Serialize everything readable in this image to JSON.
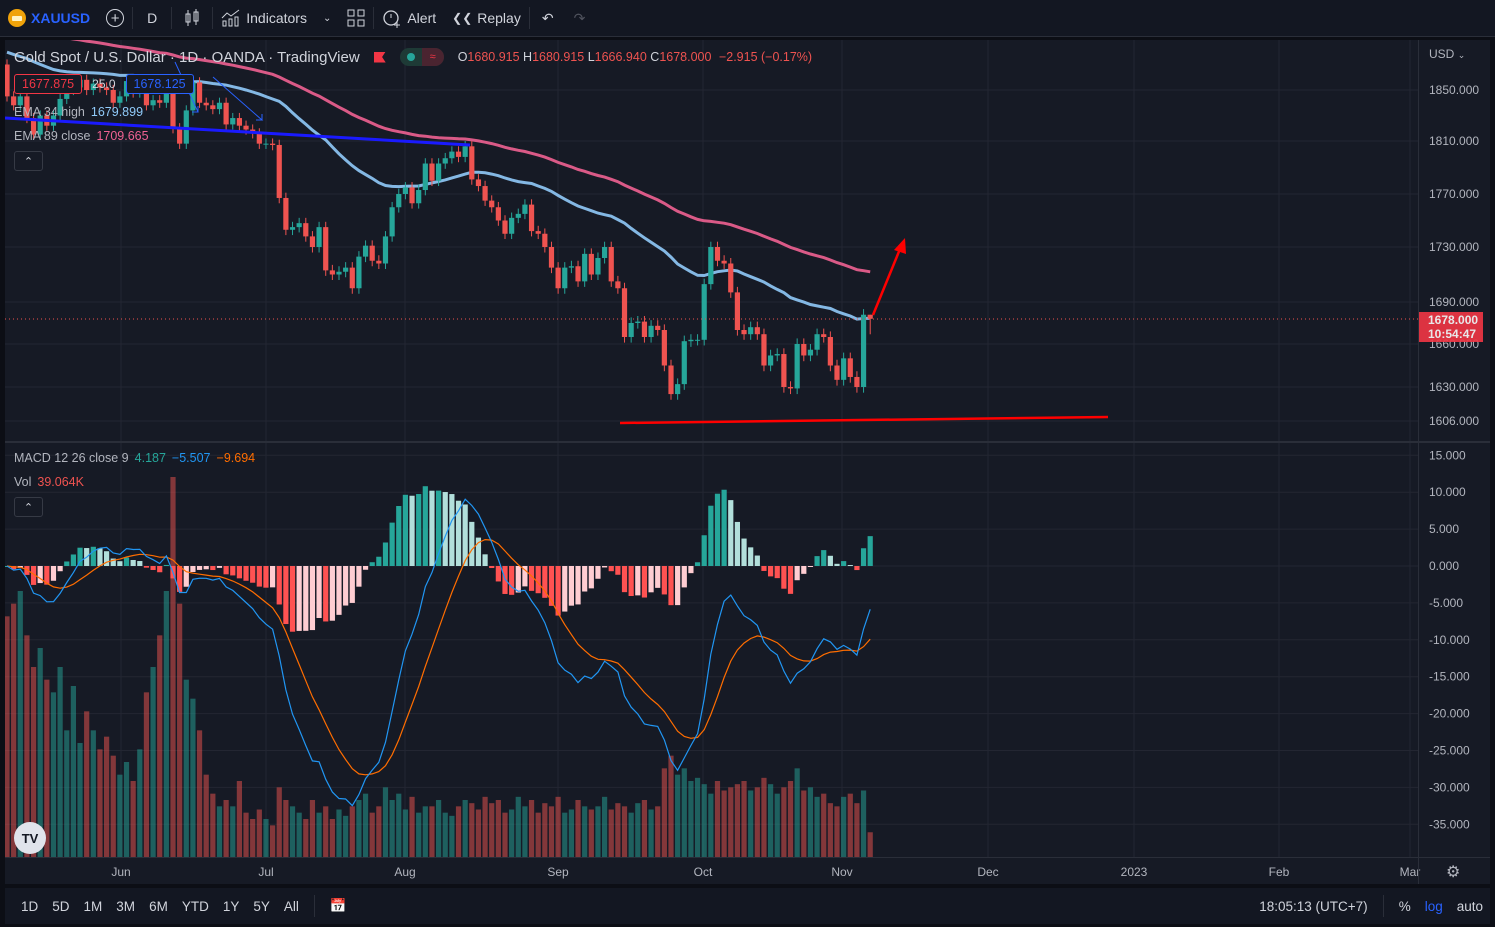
{
  "toolbar": {
    "symbol": "XAUUSD",
    "interval": "D",
    "indicators_label": "Indicators",
    "alert_label": "Alert",
    "replay_label": "Replay"
  },
  "legend": {
    "title": "Gold Spot / U.S. Dollar · 1D · OANDA · TradingView",
    "o_label": "O",
    "o": "1680.915",
    "h_label": "H",
    "h": "1680.915",
    "l_label": "L",
    "l": "1666.940",
    "c_label": "C",
    "c": "1678.000",
    "change": "−2.915 (−0.17%)",
    "sell_price": "1677.875",
    "spread": "25.0",
    "buy_price": "1678.125",
    "ema34_label": "EMA 34 high",
    "ema34_value": "1679.899",
    "ema89_label": "EMA 89 close",
    "ema89_value": "1709.665"
  },
  "macd_legend": {
    "label": "MACD 12 26 close 9",
    "histogram": "4.187",
    "macd": "−5.507",
    "signal": "−9.694",
    "vol_label": "Vol",
    "vol_value": "39.064K"
  },
  "price_axis": {
    "currency": "USD",
    "current_price": "1678.000",
    "countdown": "10:54:47"
  },
  "bottom_bar": {
    "ranges": [
      "1D",
      "5D",
      "1M",
      "3M",
      "6M",
      "YTD",
      "1Y",
      "5Y",
      "All"
    ],
    "clock": "18:05:13 (UTC+7)",
    "percent": "%",
    "log": "log",
    "auto": "auto"
  },
  "colors": {
    "up": "#26a69a",
    "down": "#ef5350",
    "ema34": "#90caf9",
    "ema89": "#f06292",
    "macd": "#2196f3",
    "signal": "#ff6d00",
    "accent": "#2962ff",
    "annotation": "#ff0000"
  },
  "chart_data": {
    "type": "candlestick",
    "title": "Gold Spot / U.S. Dollar · 1D · OANDA",
    "price_ticks": [
      "1850.000",
      "1810.000",
      "1770.000",
      "1730.000",
      "1690.000",
      "1660.000",
      "1630.000",
      "1606.000"
    ],
    "price_tick_values": [
      1850,
      1810,
      1770,
      1730,
      1690,
      1660,
      1630,
      1606
    ],
    "macd_ticks": [
      "15.000",
      "10.000",
      "5.000",
      "0.000",
      "-5.000",
      "-10.000",
      "-15.000",
      "-20.000",
      "-25.000",
      "-30.000",
      "-35.000"
    ],
    "macd_tick_values": [
      15,
      10,
      5,
      0,
      -5,
      -10,
      -15,
      -20,
      -25,
      -30,
      -35
    ],
    "time_ticks": [
      "Jun",
      "Jul",
      "Aug",
      "Sep",
      "Oct",
      "Nov",
      "Dec",
      "2023",
      "Feb",
      "Mar"
    ],
    "first_open": 1870,
    "closes": [
      1845,
      1838,
      1845,
      1828,
      1815,
      1830,
      1822,
      1830,
      1843,
      1850,
      1852,
      1858,
      1850,
      1855,
      1852,
      1850,
      1840,
      1845,
      1857,
      1848,
      1850,
      1838,
      1842,
      1840,
      1858,
      1820,
      1808,
      1834,
      1856,
      1840,
      1838,
      1835,
      1840,
      1823,
      1828,
      1822,
      1819,
      1816,
      1808,
      1808,
      1807,
      1767,
      1743,
      1745,
      1748,
      1738,
      1730,
      1745,
      1713,
      1710,
      1712,
      1715,
      1700,
      1723,
      1731,
      1720,
      1718,
      1738,
      1760,
      1770,
      1775,
      1763,
      1773,
      1793,
      1780,
      1793,
      1797,
      1802,
      1798,
      1806,
      1781,
      1776,
      1765,
      1760,
      1750,
      1740,
      1752,
      1755,
      1762,
      1742,
      1740,
      1730,
      1715,
      1700,
      1715,
      1716,
      1705,
      1725,
      1710,
      1722,
      1730,
      1705,
      1700,
      1665,
      1675,
      1676,
      1665,
      1673,
      1670,
      1645,
      1625,
      1632,
      1662,
      1663,
      1663,
      1703,
      1730,
      1720,
      1718,
      1697,
      1670,
      1667,
      1672,
      1667,
      1645,
      1652,
      1653,
      1630,
      1629,
      1660,
      1652,
      1656,
      1667,
      1665,
      1645,
      1635,
      1650,
      1637,
      1630,
      1680.915,
      1678
    ],
    "last_bar": {
      "open": 1680.915,
      "high": 1680.915,
      "low": 1666.94,
      "close": 1678.0
    },
    "volume_k": [
      380,
      400,
      420,
      350,
      300,
      330,
      280,
      260,
      300,
      200,
      270,
      180,
      230,
      200,
      170,
      190,
      160,
      130,
      150,
      120,
      170,
      260,
      300,
      350,
      420,
      600,
      400,
      280,
      250,
      200,
      130,
      100,
      80,
      90,
      80,
      120,
      70,
      60,
      75,
      60,
      50,
      110,
      90,
      80,
      70,
      60,
      90,
      70,
      80,
      60,
      75,
      65,
      80,
      90,
      100,
      70,
      80,
      110,
      90,
      100,
      75,
      95,
      70,
      80,
      80,
      90,
      70,
      65,
      80,
      90,
      85,
      75,
      95,
      85,
      90,
      70,
      75,
      95,
      80,
      90,
      70,
      85,
      80,
      95,
      70,
      75,
      90,
      80,
      75,
      80,
      95,
      75,
      85,
      80,
      70,
      85,
      90,
      75,
      80,
      140,
      160,
      130,
      140,
      120,
      125,
      115,
      100,
      120,
      105,
      110,
      115,
      120,
      105,
      110,
      125,
      115,
      100,
      110,
      120,
      140,
      105,
      110,
      95,
      100,
      85,
      80,
      95,
      100,
      85,
      105,
      39.064
    ],
    "indicators": [
      "EMA 34 high",
      "EMA 89 close",
      "MACD 12 26 close 9",
      "Volume"
    ],
    "annotations": [
      "descending blue trendline",
      "horizontal red support near 1606",
      "red up arrow from last candle"
    ]
  }
}
